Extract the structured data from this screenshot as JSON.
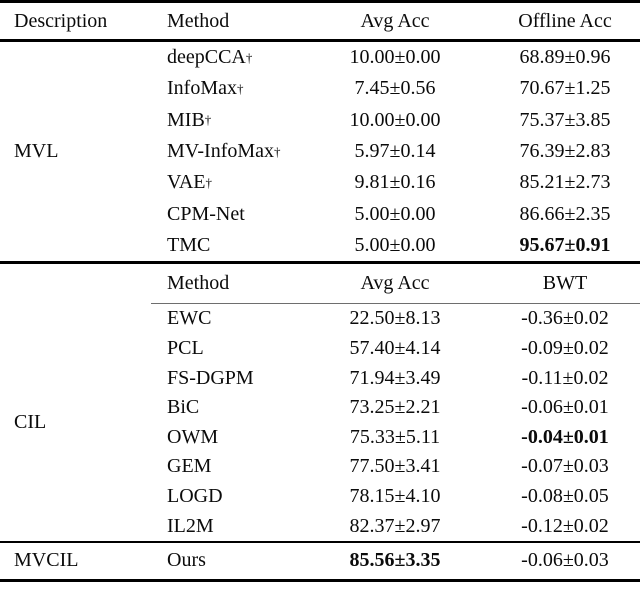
{
  "header_top": {
    "description": "Description",
    "method": "Method",
    "avg_acc": "Avg Acc",
    "offline_acc": "Offline Acc"
  },
  "sections": {
    "mvl": {
      "label": "MVL",
      "rows": [
        {
          "method": "deepCCA",
          "sup": "†",
          "avg_acc": "10.00±0.00",
          "offline_acc": "68.89±0.96"
        },
        {
          "method": "InfoMax",
          "sup": "†",
          "avg_acc": "7.45±0.56",
          "offline_acc": "70.67±1.25"
        },
        {
          "method": "MIB",
          "sup": "†",
          "avg_acc": "10.00±0.00",
          "offline_acc": "75.37±3.85"
        },
        {
          "method": "MV-InfoMax",
          "sup": "†",
          "avg_acc": "5.97±0.14",
          "offline_acc": "76.39±2.83"
        },
        {
          "method": "VAE",
          "sup": "†",
          "avg_acc": "9.81±0.16",
          "offline_acc": "85.21±2.73"
        },
        {
          "method": "CPM-Net",
          "avg_acc": "5.00±0.00",
          "offline_acc": "86.66±2.35"
        },
        {
          "method": "TMC",
          "avg_acc": "5.00±0.00",
          "offline_acc": "95.67±0.91",
          "bold_offline": true
        }
      ]
    },
    "header_mid": {
      "method": "Method",
      "avg_acc": "Avg Acc",
      "bwt": "BWT"
    },
    "cil": {
      "label": "CIL",
      "rows": [
        {
          "method": "EWC",
          "avg_acc": "22.50±8.13",
          "bwt": "-0.36±0.02"
        },
        {
          "method": "PCL",
          "avg_acc": "57.40±4.14",
          "bwt": "-0.09±0.02"
        },
        {
          "method": "FS-DGPM",
          "avg_acc": "71.94±3.49",
          "bwt": "-0.11±0.02"
        },
        {
          "method": "BiC",
          "avg_acc": "73.25±2.21",
          "bwt": "-0.06±0.01"
        },
        {
          "method": "OWM",
          "avg_acc": "75.33±5.11",
          "bwt": "-0.04±0.01",
          "bold_bwt": true
        },
        {
          "method": "GEM",
          "avg_acc": "77.50±3.41",
          "bwt": "-0.07±0.03"
        },
        {
          "method": "LOGD",
          "avg_acc": "78.15±4.10",
          "bwt": "-0.08±0.05"
        },
        {
          "method": "IL2M",
          "avg_acc": "82.37±2.97",
          "bwt": "-0.12±0.02"
        }
      ]
    },
    "final": {
      "label": "MVCIL",
      "method": "Ours",
      "avg_acc": "85.56±3.35",
      "bwt": "-0.06±0.03",
      "bold_avg": true
    }
  },
  "colors": {
    "text": "#0b0b0b",
    "rule": "#000000",
    "partial_rule": "#6e6e6e",
    "background": "#ffffff"
  }
}
